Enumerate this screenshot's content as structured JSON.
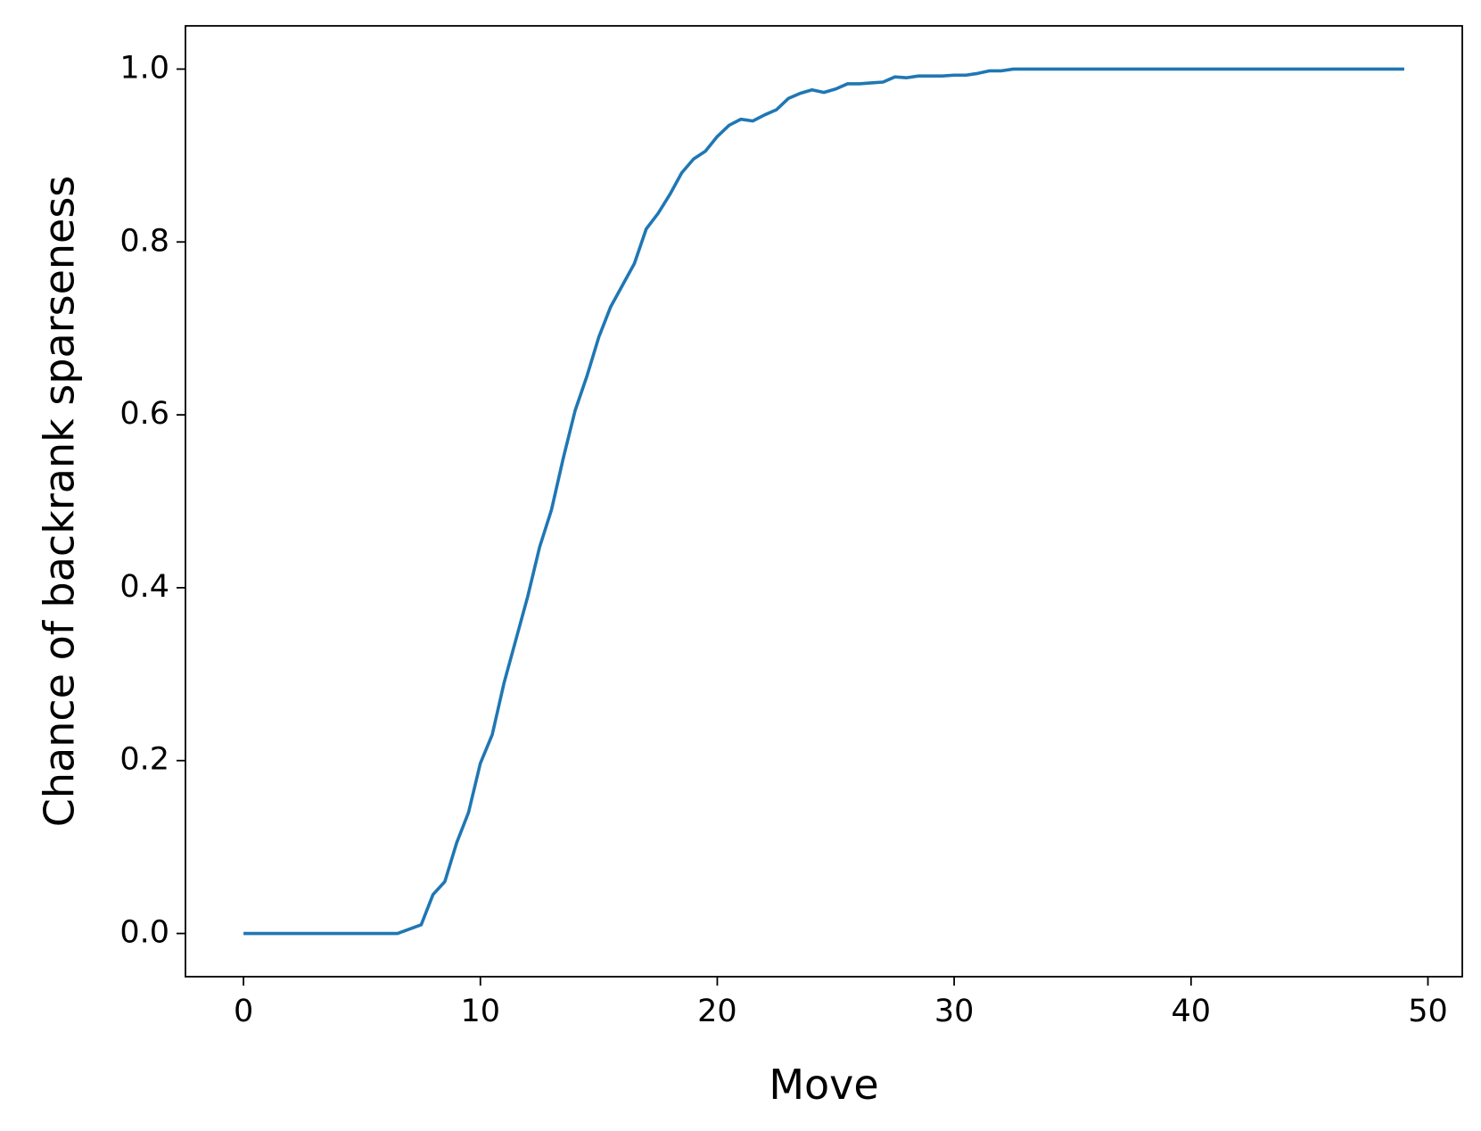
{
  "chart_data": {
    "type": "line",
    "xlabel": "Move",
    "ylabel": "Chance of backrank sparseness",
    "x": [
      0,
      0.5,
      1,
      1.5,
      2,
      2.5,
      3,
      3.5,
      4,
      4.5,
      5,
      5.5,
      6,
      6.5,
      7,
      7.5,
      8,
      8.5,
      9,
      9.5,
      10,
      10.5,
      11,
      11.5,
      12,
      12.5,
      13,
      13.5,
      14,
      14.5,
      15,
      15.5,
      16,
      16.5,
      17,
      17.5,
      18,
      18.5,
      19,
      19.5,
      20,
      20.5,
      21,
      21.5,
      22,
      22.5,
      23,
      23.5,
      24,
      24.5,
      25,
      25.5,
      26,
      26.5,
      27,
      27.5,
      28,
      28.5,
      29,
      29.5,
      30,
      30.5,
      31,
      31.5,
      32,
      32.5,
      33,
      33.5,
      34,
      34.5,
      35,
      35.5,
      36,
      36.5,
      37,
      37.5,
      38,
      38.5,
      39,
      39.5,
      40,
      40.5,
      41,
      41.5,
      42,
      42.5,
      43,
      43.5,
      44,
      44.5,
      45,
      45.5,
      46,
      46.5,
      47,
      47.5,
      48,
      48.5,
      49
    ],
    "series": [
      {
        "name": "Chance of backrank sparseness",
        "color": "#1f77b4",
        "values": [
          0,
          0,
          0,
          0,
          0,
          0,
          0,
          0,
          0,
          0,
          0,
          0,
          0,
          0,
          0.005,
          0.01,
          0.045,
          0.06,
          0.105,
          0.14,
          0.197,
          0.23,
          0.29,
          0.34,
          0.39,
          0.447,
          0.49,
          0.55,
          0.605,
          0.645,
          0.69,
          0.725,
          0.75,
          0.775,
          0.815,
          0.833,
          0.855,
          0.88,
          0.896,
          0.905,
          0.922,
          0.935,
          0.942,
          0.94,
          0.947,
          0.953,
          0.966,
          0.972,
          0.976,
          0.973,
          0.977,
          0.983,
          0.983,
          0.984,
          0.985,
          0.991,
          0.99,
          0.992,
          0.992,
          0.992,
          0.993,
          0.993,
          0.995,
          0.998,
          0.998,
          1,
          1,
          1,
          1,
          1,
          1,
          1,
          1,
          1,
          1,
          1,
          1,
          1,
          1,
          1,
          1,
          1,
          1,
          1,
          1,
          1,
          1,
          1,
          1,
          1,
          1,
          1,
          1,
          1,
          1,
          1,
          1,
          1,
          1
        ]
      }
    ],
    "xlim": [
      -2.45,
      51.45
    ],
    "ylim": [
      -0.05,
      1.05
    ],
    "xticks": [
      0,
      10,
      20,
      30,
      40,
      50
    ],
    "yticks": [
      {
        "value": 0,
        "label": "0.0"
      },
      0.2,
      0.4,
      0.6,
      0.8,
      {
        "value": 1,
        "label": "1.0"
      }
    ],
    "grid": false
  }
}
